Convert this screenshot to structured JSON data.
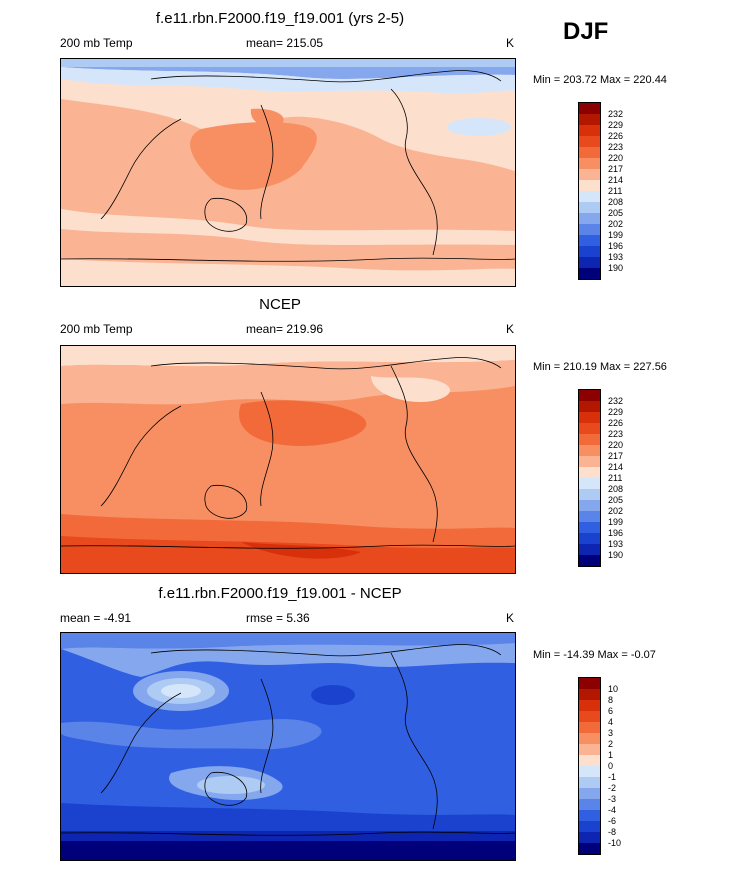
{
  "season": "DJF",
  "panels": [
    {
      "id": "model",
      "title": "f.e11.rbn.F2000.f19_f19.001 (yrs 2-5)",
      "left_label": "200 mb Temp",
      "center_label": "mean= 215.05",
      "units": "K",
      "minmax": "Min = 203.72 Max = 220.44",
      "colorbar_labels": [
        "232",
        "229",
        "226",
        "223",
        "220",
        "217",
        "214",
        "211",
        "208",
        "205",
        "202",
        "199",
        "196",
        "193",
        "190"
      ]
    },
    {
      "id": "ncep",
      "title": "NCEP",
      "left_label": "200 mb Temp",
      "center_label": "mean= 219.96",
      "units": "K",
      "minmax": "Min = 210.19 Max = 227.56",
      "colorbar_labels": [
        "232",
        "229",
        "226",
        "223",
        "220",
        "217",
        "214",
        "211",
        "208",
        "205",
        "202",
        "199",
        "196",
        "193",
        "190"
      ]
    },
    {
      "id": "diff",
      "title": "f.e11.rbn.F2000.f19_f19.001 - NCEP",
      "left_label": "mean =  -4.91",
      "center_label": "rmse =   5.36",
      "units": "K",
      "minmax": "Min = -14.39 Max =  -0.07",
      "colorbar_labels": [
        "10",
        "8",
        "6",
        "4",
        "3",
        "2",
        "1",
        "0",
        "-1",
        "-2",
        "-3",
        "-4",
        "-6",
        "-8",
        "-10"
      ]
    }
  ],
  "colors": {
    "scale": [
      "#8b0000",
      "#b31700",
      "#d7300b",
      "#e8491d",
      "#f26a3a",
      "#f78f62",
      "#fab493",
      "#fddfcd",
      "#d6e6fa",
      "#aecbf3",
      "#84a7ee",
      "#5b84e8",
      "#3060e1",
      "#1a42cf",
      "#0d25b0",
      "#00007a"
    ]
  }
}
